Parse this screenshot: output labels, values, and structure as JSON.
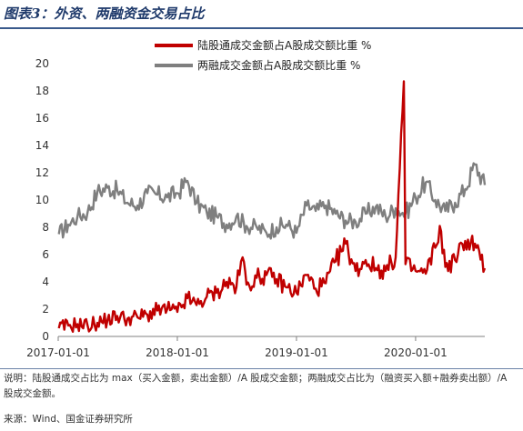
{
  "figure_title": "图表3：外资、两融资金交易占比",
  "note": "说明：陆股通成交占比为 max（买入金额，卖出金额）/A 股成交金额；两融成交占比为（融资买入额+融券卖出额）/A 股成交金额。",
  "source": "来源：Wind、国金证券研究所",
  "colors": {
    "series1": "#c00000",
    "series2": "#7f7f7f"
  },
  "chart_data": {
    "type": "line",
    "xlabel": "",
    "ylabel": "",
    "ylim": [
      0,
      20
    ],
    "yticks": [
      "0",
      "2",
      "4",
      "6",
      "8",
      "10",
      "12",
      "14",
      "16",
      "18",
      "20"
    ],
    "xticks": [
      "2017-01-01",
      "2018-01-01",
      "2019-01-01",
      "2020-01-01"
    ],
    "xrange": [
      "2017-01-01",
      "2020-07-31"
    ],
    "legend_position": "top",
    "grid": false,
    "series": [
      {
        "name": "陆股通成交金额占A股成交额比重 %",
        "color": "#c00000",
        "points": [
          [
            "2017-01-03",
            0.6
          ],
          [
            "2017-02-01",
            0.8
          ],
          [
            "2017-03-01",
            0.9
          ],
          [
            "2017-04-01",
            0.8
          ],
          [
            "2017-05-01",
            1.0
          ],
          [
            "2017-06-01",
            1.2
          ],
          [
            "2017-07-01",
            1.5
          ],
          [
            "2017-08-01",
            1.3
          ],
          [
            "2017-09-01",
            1.4
          ],
          [
            "2017-10-01",
            1.6
          ],
          [
            "2017-11-01",
            1.9
          ],
          [
            "2017-12-01",
            2.0
          ],
          [
            "2018-01-01",
            1.8
          ],
          [
            "2018-02-01",
            2.8
          ],
          [
            "2018-03-01",
            2.3
          ],
          [
            "2018-04-01",
            2.9
          ],
          [
            "2018-05-01",
            3.2
          ],
          [
            "2018-06-01",
            4.0
          ],
          [
            "2018-07-01",
            3.6
          ],
          [
            "2018-07-20",
            5.8
          ],
          [
            "2018-08-01",
            3.8
          ],
          [
            "2018-09-01",
            4.3
          ],
          [
            "2018-10-01",
            4.5
          ],
          [
            "2018-11-01",
            4.2
          ],
          [
            "2018-12-01",
            3.6
          ],
          [
            "2019-01-01",
            3.2
          ],
          [
            "2019-02-01",
            4.5
          ],
          [
            "2019-03-01",
            3.5
          ],
          [
            "2019-04-01",
            3.9
          ],
          [
            "2019-05-01",
            5.5
          ],
          [
            "2019-06-01",
            6.8
          ],
          [
            "2019-07-01",
            4.8
          ],
          [
            "2019-08-01",
            5.6
          ],
          [
            "2019-09-01",
            5.0
          ],
          [
            "2019-10-01",
            4.8
          ],
          [
            "2019-11-01",
            5.8
          ],
          [
            "2019-11-26",
            18.7
          ],
          [
            "2019-12-01",
            5.3
          ],
          [
            "2020-01-01",
            4.8
          ],
          [
            "2020-02-01",
            4.6
          ],
          [
            "2020-03-01",
            6.5
          ],
          [
            "2020-03-15",
            8.1
          ],
          [
            "2020-04-01",
            5.1
          ],
          [
            "2020-05-01",
            5.6
          ],
          [
            "2020-06-01",
            7.0
          ],
          [
            "2020-07-01",
            6.8
          ],
          [
            "2020-07-31",
            5.0
          ]
        ]
      },
      {
        "name": "两融成交金额占A股成交额比重 %",
        "color": "#7f7f7f",
        "points": [
          [
            "2017-01-03",
            7.5
          ],
          [
            "2017-02-01",
            8.2
          ],
          [
            "2017-03-01",
            8.8
          ],
          [
            "2017-04-01",
            9.1
          ],
          [
            "2017-05-01",
            10.6
          ],
          [
            "2017-06-01",
            10.9
          ],
          [
            "2017-07-01",
            10.7
          ],
          [
            "2017-08-01",
            9.8
          ],
          [
            "2017-09-01",
            9.6
          ],
          [
            "2017-10-01",
            10.5
          ],
          [
            "2017-11-01",
            10.4
          ],
          [
            "2017-12-01",
            10.2
          ],
          [
            "2018-01-01",
            10.5
          ],
          [
            "2018-02-01",
            11.4
          ],
          [
            "2018-03-01",
            9.8
          ],
          [
            "2018-04-01",
            9.1
          ],
          [
            "2018-05-01",
            8.8
          ],
          [
            "2018-06-01",
            8.2
          ],
          [
            "2018-07-01",
            8.8
          ],
          [
            "2018-08-01",
            8.1
          ],
          [
            "2018-09-01",
            8.0
          ],
          [
            "2018-10-01",
            7.6
          ],
          [
            "2018-11-01",
            8.0
          ],
          [
            "2018-12-01",
            8.2
          ],
          [
            "2019-01-01",
            7.6
          ],
          [
            "2019-02-01",
            9.6
          ],
          [
            "2019-03-01",
            9.2
          ],
          [
            "2019-04-01",
            9.6
          ],
          [
            "2019-05-01",
            9.0
          ],
          [
            "2019-06-01",
            8.5
          ],
          [
            "2019-07-01",
            8.4
          ],
          [
            "2019-08-01",
            9.0
          ],
          [
            "2019-09-01",
            9.5
          ],
          [
            "2019-10-01",
            8.8
          ],
          [
            "2019-11-01",
            9.4
          ],
          [
            "2019-12-01",
            9.0
          ],
          [
            "2020-01-01",
            10.2
          ],
          [
            "2020-02-01",
            11.3
          ],
          [
            "2020-03-01",
            10.0
          ],
          [
            "2020-04-01",
            9.2
          ],
          [
            "2020-05-01",
            9.8
          ],
          [
            "2020-06-01",
            10.8
          ],
          [
            "2020-07-01",
            12.6
          ],
          [
            "2020-07-31",
            11.1
          ]
        ]
      }
    ]
  }
}
